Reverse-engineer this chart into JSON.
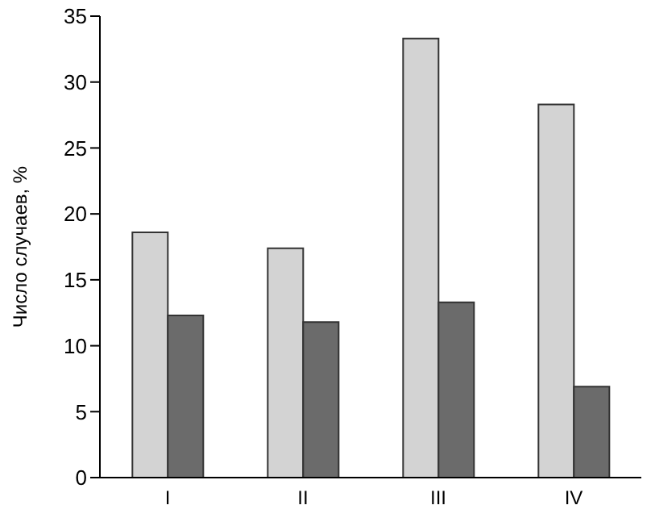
{
  "chart_data": {
    "type": "bar",
    "ylabel": "Число случаев, %",
    "categories": [
      "I",
      "II",
      "III",
      "IV"
    ],
    "series": [
      {
        "color": "#d3d3d3",
        "values": [
          18.6,
          17.4,
          33.3,
          28.3
        ]
      },
      {
        "color": "#6b6b6b",
        "values": [
          12.3,
          11.8,
          13.3,
          6.9
        ]
      }
    ],
    "ylim": [
      0,
      35
    ],
    "yticks": [
      0,
      5,
      10,
      15,
      20,
      25,
      30,
      35
    ],
    "grid": false,
    "legend": false
  }
}
